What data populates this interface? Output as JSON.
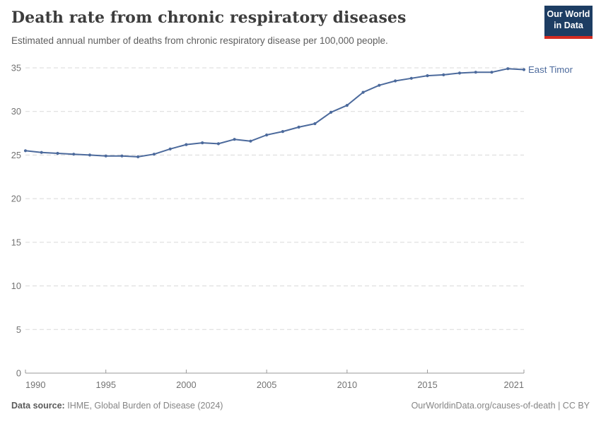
{
  "header": {
    "title": "Death rate from chronic respiratory diseases",
    "subtitle": "Estimated annual number of deaths from chronic respiratory disease per 100,000 people.",
    "logo": {
      "line1": "Our World",
      "line2": "in Data",
      "bg_color": "#1d3d63",
      "stripe_color": "#d42b21"
    }
  },
  "chart_data": {
    "type": "line",
    "title": "Death rate from chronic respiratory diseases",
    "xlabel": "",
    "ylabel": "",
    "x": [
      1990,
      1991,
      1992,
      1993,
      1994,
      1995,
      1996,
      1997,
      1998,
      1999,
      2000,
      2001,
      2002,
      2003,
      2004,
      2005,
      2006,
      2007,
      2008,
      2009,
      2010,
      2011,
      2012,
      2013,
      2014,
      2015,
      2016,
      2017,
      2018,
      2019,
      2020,
      2021
    ],
    "series": [
      {
        "name": "East Timor",
        "color": "#4C6A9C",
        "values": [
          25.5,
          25.3,
          25.2,
          25.1,
          25.0,
          24.9,
          24.9,
          24.8,
          25.1,
          25.7,
          26.2,
          26.4,
          26.3,
          26.8,
          26.6,
          27.3,
          27.7,
          28.2,
          28.6,
          29.9,
          30.7,
          32.2,
          33.0,
          33.5,
          33.8,
          34.1,
          34.2,
          34.4,
          34.5,
          34.5,
          34.9,
          34.8
        ]
      }
    ],
    "ylim": [
      0,
      35
    ],
    "y_ticks": [
      0,
      5,
      10,
      15,
      20,
      25,
      30,
      35
    ],
    "x_ticks": [
      1990,
      1995,
      2000,
      2005,
      2010,
      2015,
      2021
    ],
    "grid": "horizontal-dashed",
    "legend_position": "end-of-line-label",
    "colors": {
      "grid_line": "#d9d9d9",
      "axis_line": "#999999",
      "tick_label": "#737373"
    }
  },
  "footer": {
    "source_label": "Data source:",
    "source_text": "IHME, Global Burden of Disease (2024)",
    "credit": "OurWorldinData.org/causes-of-death | CC BY"
  }
}
